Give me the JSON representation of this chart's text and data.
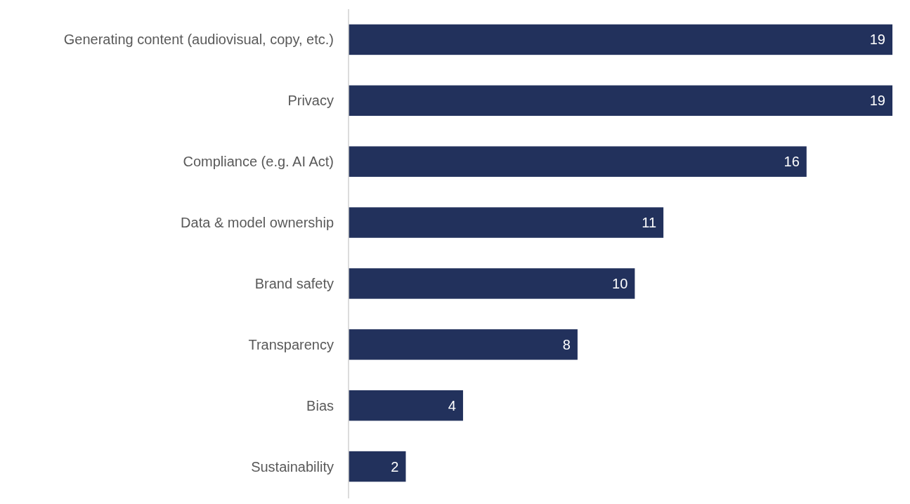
{
  "chart_data": {
    "type": "bar",
    "orientation": "horizontal",
    "categories": [
      "Generating content (audiovisual, copy, etc.)",
      "Privacy",
      "Compliance (e.g. AI Act)",
      "Data & model ownership",
      "Brand safety",
      "Transparency",
      "Bias",
      "Sustainability"
    ],
    "values": [
      19,
      19,
      16,
      11,
      10,
      8,
      4,
      2
    ],
    "color": "#22315c",
    "data_labels": true
  }
}
